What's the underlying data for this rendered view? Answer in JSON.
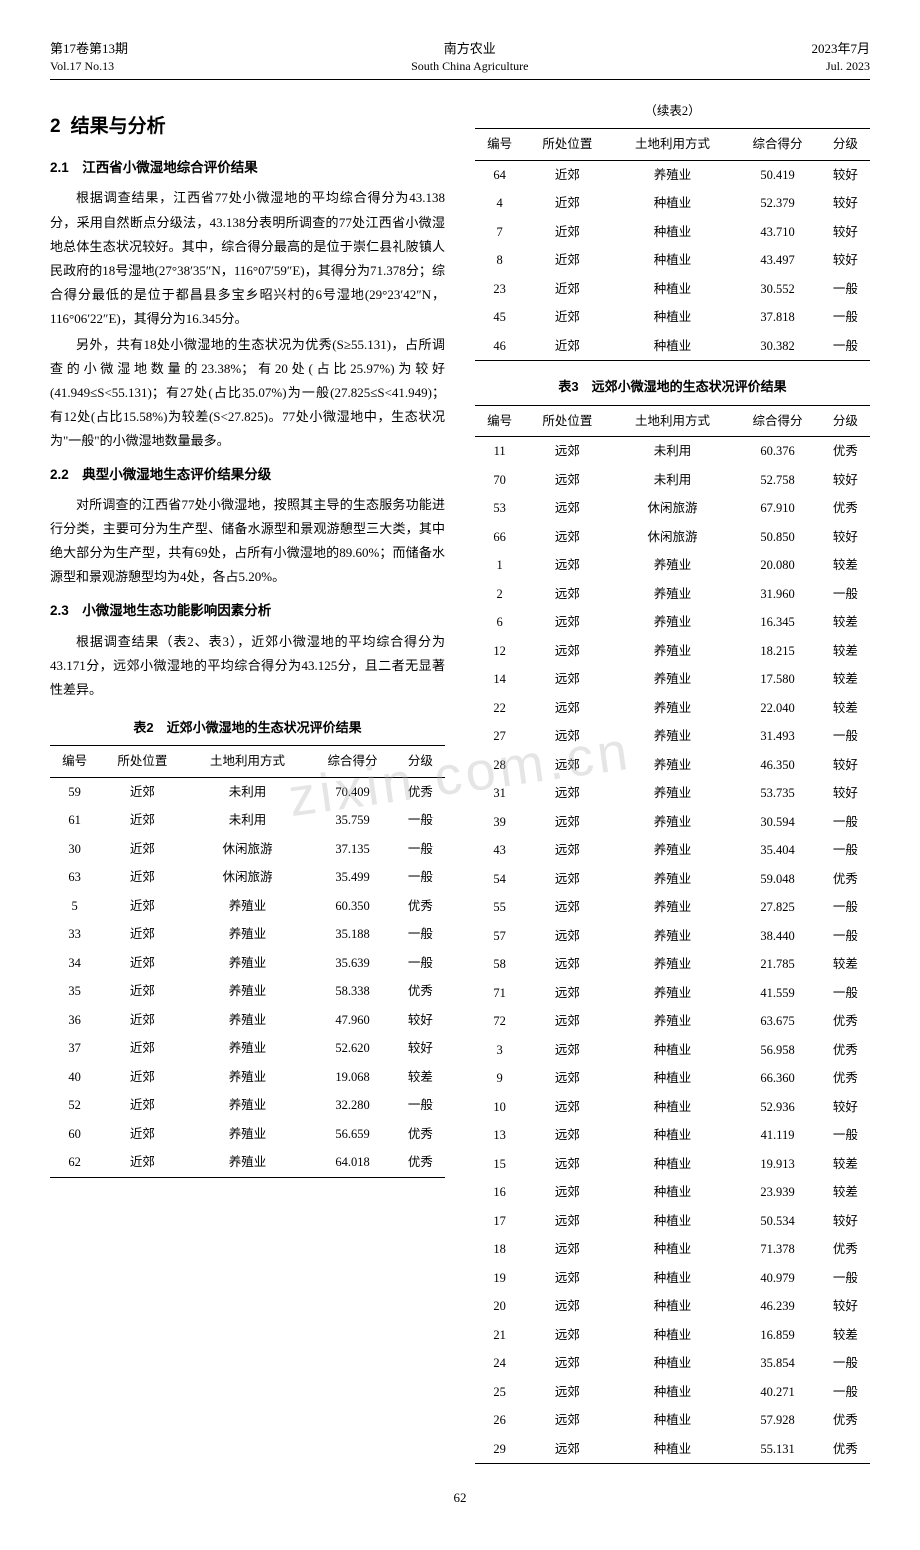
{
  "header": {
    "left_cn": "第17卷第13期",
    "left_en": "Vol.17 No.13",
    "center_cn": "南方农业",
    "center_en": "South China Agriculture",
    "right_cn": "2023年7月",
    "right_en": "Jul. 2023"
  },
  "section2": {
    "number": "2",
    "title": "结果与分析",
    "s21_title": "2.1　江西省小微湿地综合评价结果",
    "s21_p1": "根据调查结果，江西省77处小微湿地的平均综合得分为43.138分，采用自然断点分级法，43.138分表明所调查的77处江西省小微湿地总体生态状况较好。其中，综合得分最高的是位于崇仁县礼陂镇人民政府的18号湿地(27°38′35″N，116°07′59″E)，其得分为71.378分；综合得分最低的是位于都昌县多宝乡昭兴村的6号湿地(29°23′42″N，116°06′22″E)，其得分为16.345分。",
    "s21_p2": "另外，共有18处小微湿地的生态状况为优秀(S≥55.131)，占所调查的小微湿地数量的23.38%；有20处(占比25.97%)为较好(41.949≤S<55.131)；有27处(占比35.07%)为一般(27.825≤S<41.949)；有12处(占比15.58%)为较差(S<27.825)。77处小微湿地中，生态状况为\"一般\"的小微湿地数量最多。",
    "s22_title": "2.2　典型小微湿地生态评价结果分级",
    "s22_p1": "对所调查的江西省77处小微湿地，按照其主导的生态服务功能进行分类，主要可分为生产型、储备水源型和景观游憩型三大类，其中绝大部分为生产型，共有69处，占所有小微湿地的89.60%；而储备水源型和景观游憩型均为4处，各占5.20%。",
    "s23_title": "2.3　小微湿地生态功能影响因素分析",
    "s23_p1": "根据调查结果（表2、表3），近郊小微湿地的平均综合得分为43.171分，远郊小微湿地的平均综合得分为43.125分，且二者无显著性差异。"
  },
  "table_common_headers": [
    "编号",
    "所处位置",
    "土地利用方式",
    "综合得分",
    "分级"
  ],
  "table2": {
    "caption": "表2　近郊小微湿地的生态状况评价结果",
    "rows": [
      [
        "59",
        "近郊",
        "未利用",
        "70.409",
        "优秀"
      ],
      [
        "61",
        "近郊",
        "未利用",
        "35.759",
        "一般"
      ],
      [
        "30",
        "近郊",
        "休闲旅游",
        "37.135",
        "一般"
      ],
      [
        "63",
        "近郊",
        "休闲旅游",
        "35.499",
        "一般"
      ],
      [
        "5",
        "近郊",
        "养殖业",
        "60.350",
        "优秀"
      ],
      [
        "33",
        "近郊",
        "养殖业",
        "35.188",
        "一般"
      ],
      [
        "34",
        "近郊",
        "养殖业",
        "35.639",
        "一般"
      ],
      [
        "35",
        "近郊",
        "养殖业",
        "58.338",
        "优秀"
      ],
      [
        "36",
        "近郊",
        "养殖业",
        "47.960",
        "较好"
      ],
      [
        "37",
        "近郊",
        "养殖业",
        "52.620",
        "较好"
      ],
      [
        "40",
        "近郊",
        "养殖业",
        "19.068",
        "较差"
      ],
      [
        "52",
        "近郊",
        "养殖业",
        "32.280",
        "一般"
      ],
      [
        "60",
        "近郊",
        "养殖业",
        "56.659",
        "优秀"
      ],
      [
        "62",
        "近郊",
        "养殖业",
        "64.018",
        "优秀"
      ]
    ]
  },
  "table2_cont": {
    "label": "（续表2）",
    "rows": [
      [
        "64",
        "近郊",
        "养殖业",
        "50.419",
        "较好"
      ],
      [
        "4",
        "近郊",
        "种植业",
        "52.379",
        "较好"
      ],
      [
        "7",
        "近郊",
        "种植业",
        "43.710",
        "较好"
      ],
      [
        "8",
        "近郊",
        "种植业",
        "43.497",
        "较好"
      ],
      [
        "23",
        "近郊",
        "种植业",
        "30.552",
        "一般"
      ],
      [
        "45",
        "近郊",
        "种植业",
        "37.818",
        "一般"
      ],
      [
        "46",
        "近郊",
        "种植业",
        "30.382",
        "一般"
      ]
    ]
  },
  "table3": {
    "caption": "表3　远郊小微湿地的生态状况评价结果",
    "rows": [
      [
        "11",
        "远郊",
        "未利用",
        "60.376",
        "优秀"
      ],
      [
        "70",
        "远郊",
        "未利用",
        "52.758",
        "较好"
      ],
      [
        "53",
        "远郊",
        "休闲旅游",
        "67.910",
        "优秀"
      ],
      [
        "66",
        "远郊",
        "休闲旅游",
        "50.850",
        "较好"
      ],
      [
        "1",
        "远郊",
        "养殖业",
        "20.080",
        "较差"
      ],
      [
        "2",
        "远郊",
        "养殖业",
        "31.960",
        "一般"
      ],
      [
        "6",
        "远郊",
        "养殖业",
        "16.345",
        "较差"
      ],
      [
        "12",
        "远郊",
        "养殖业",
        "18.215",
        "较差"
      ],
      [
        "14",
        "远郊",
        "养殖业",
        "17.580",
        "较差"
      ],
      [
        "22",
        "远郊",
        "养殖业",
        "22.040",
        "较差"
      ],
      [
        "27",
        "远郊",
        "养殖业",
        "31.493",
        "一般"
      ],
      [
        "28",
        "远郊",
        "养殖业",
        "46.350",
        "较好"
      ],
      [
        "31",
        "远郊",
        "养殖业",
        "53.735",
        "较好"
      ],
      [
        "39",
        "远郊",
        "养殖业",
        "30.594",
        "一般"
      ],
      [
        "43",
        "远郊",
        "养殖业",
        "35.404",
        "一般"
      ],
      [
        "54",
        "远郊",
        "养殖业",
        "59.048",
        "优秀"
      ],
      [
        "55",
        "远郊",
        "养殖业",
        "27.825",
        "一般"
      ],
      [
        "57",
        "远郊",
        "养殖业",
        "38.440",
        "一般"
      ],
      [
        "58",
        "远郊",
        "养殖业",
        "21.785",
        "较差"
      ],
      [
        "71",
        "远郊",
        "养殖业",
        "41.559",
        "一般"
      ],
      [
        "72",
        "远郊",
        "养殖业",
        "63.675",
        "优秀"
      ],
      [
        "3",
        "远郊",
        "种植业",
        "56.958",
        "优秀"
      ],
      [
        "9",
        "远郊",
        "种植业",
        "66.360",
        "优秀"
      ],
      [
        "10",
        "远郊",
        "种植业",
        "52.936",
        "较好"
      ],
      [
        "13",
        "远郊",
        "种植业",
        "41.119",
        "一般"
      ],
      [
        "15",
        "远郊",
        "种植业",
        "19.913",
        "较差"
      ],
      [
        "16",
        "远郊",
        "种植业",
        "23.939",
        "较差"
      ],
      [
        "17",
        "远郊",
        "种植业",
        "50.534",
        "较好"
      ],
      [
        "18",
        "远郊",
        "种植业",
        "71.378",
        "优秀"
      ],
      [
        "19",
        "远郊",
        "种植业",
        "40.979",
        "一般"
      ],
      [
        "20",
        "远郊",
        "种植业",
        "46.239",
        "较好"
      ],
      [
        "21",
        "远郊",
        "种植业",
        "16.859",
        "较差"
      ],
      [
        "24",
        "远郊",
        "种植业",
        "35.854",
        "一般"
      ],
      [
        "25",
        "远郊",
        "种植业",
        "40.271",
        "一般"
      ],
      [
        "26",
        "远郊",
        "种植业",
        "57.928",
        "优秀"
      ],
      [
        "29",
        "远郊",
        "种植业",
        "55.131",
        "优秀"
      ]
    ]
  },
  "page_number": "62",
  "watermark": "zixin.com.cn"
}
